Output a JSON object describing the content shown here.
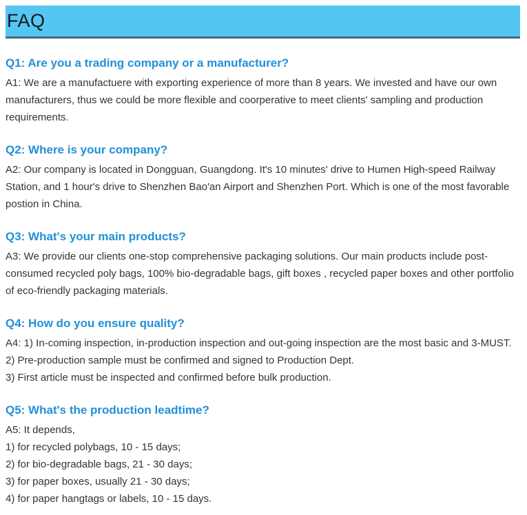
{
  "header": {
    "title": "FAQ"
  },
  "colors": {
    "banner_bg": "#55C6F2",
    "banner_border": "#466980",
    "question_blue": "#2190D7",
    "body_text": "#333333",
    "title_text": "#15181D",
    "page_bg": "#FFFFFF"
  },
  "faqs": [
    {
      "question": "Q1: Are you a trading company or a manufacturer?",
      "answer": "A1: We are a manufactuere with exporting experience of more than 8 years. We invested and have our own manufacturers, thus we could be more flexible and coorperative to meet clients' sampling and production requirements."
    },
    {
      "question": "Q2: Where is your company?",
      "answer": "A2: Our company is located in Dongguan, Guangdong. It's 10 minutes' drive to Humen High-speed Railway Station, and 1 hour's drive to Shenzhen Bao'an Airport and Shenzhen Port. Which is one of the most favorable postion in China."
    },
    {
      "question": "Q3: What's your main products?",
      "answer": "A3: We provide our clients one-stop comprehensive packaging solutions. Our main products include post-consumed recycled poly bags, 100% bio-degradable bags, gift boxes , recycled paper boxes and other portfolio of eco-friendly packaging materials."
    },
    {
      "question": "Q4: How do you ensure quality?",
      "answer": "A4: 1) In-coming inspection, in-production inspection and out-going inspection are the most basic and 3-MUST.\n2) Pre-production sample must be confirmed and signed to Production Dept.\n3) First article must be inspected and confirmed before bulk production."
    },
    {
      "question": "Q5: What's the production leadtime?",
      "answer": "A5: It depends,\n1) for recycled polybags, 10 - 15 days;\n2) for bio-degradable bags, 21 - 30 days;\n3) for paper boxes, usually 21 - 30 days;\n4) for paper hangtags or labels, 10 - 15 days."
    }
  ]
}
